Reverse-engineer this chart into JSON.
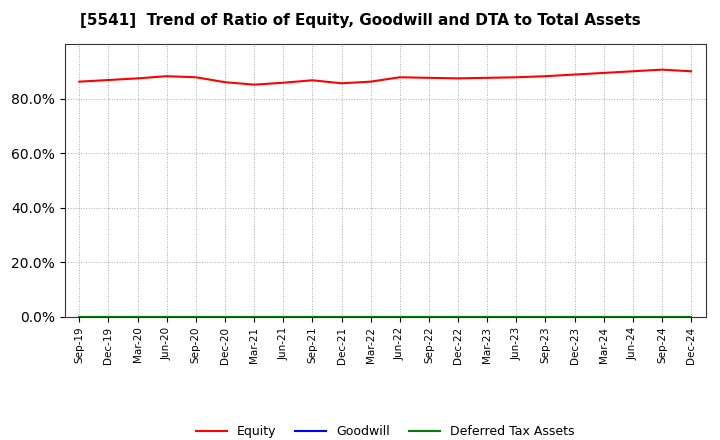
{
  "title": "[5541]  Trend of Ratio of Equity, Goodwill and DTA to Total Assets",
  "x_labels": [
    "Sep-19",
    "Dec-19",
    "Mar-20",
    "Jun-20",
    "Sep-20",
    "Dec-20",
    "Mar-21",
    "Jun-21",
    "Sep-21",
    "Dec-21",
    "Mar-22",
    "Jun-22",
    "Sep-22",
    "Dec-22",
    "Mar-23",
    "Jun-23",
    "Sep-23",
    "Dec-23",
    "Mar-24",
    "Jun-24",
    "Sep-24",
    "Dec-24"
  ],
  "equity": [
    0.862,
    0.868,
    0.874,
    0.882,
    0.878,
    0.86,
    0.851,
    0.858,
    0.867,
    0.856,
    0.862,
    0.878,
    0.876,
    0.874,
    0.876,
    0.878,
    0.882,
    0.888,
    0.894,
    0.9,
    0.906,
    0.9
  ],
  "goodwill": [
    0.0,
    0.0,
    0.0,
    0.0,
    0.0,
    0.0,
    0.0,
    0.0,
    0.0,
    0.0,
    0.0,
    0.0,
    0.0,
    0.0,
    0.0,
    0.0,
    0.0,
    0.0,
    0.0,
    0.0,
    0.0,
    0.0
  ],
  "dta": [
    0.0,
    0.0,
    0.0,
    0.0,
    0.0,
    0.0,
    0.0,
    0.0,
    0.0,
    0.0,
    0.0,
    0.0,
    0.0,
    0.0,
    0.0,
    0.0,
    0.0,
    0.0,
    0.0,
    0.0,
    0.0,
    0.0
  ],
  "equity_color": "#ff0000",
  "goodwill_color": "#0000ff",
  "dta_color": "#008000",
  "background_color": "#ffffff",
  "plot_bg_color": "#ffffff",
  "grid_color": "#aaaaaa",
  "ylim": [
    0.0,
    1.0
  ],
  "yticks": [
    0.0,
    0.2,
    0.4,
    0.6,
    0.8
  ],
  "title_fontsize": 11,
  "legend_labels": [
    "Equity",
    "Goodwill",
    "Deferred Tax Assets"
  ]
}
